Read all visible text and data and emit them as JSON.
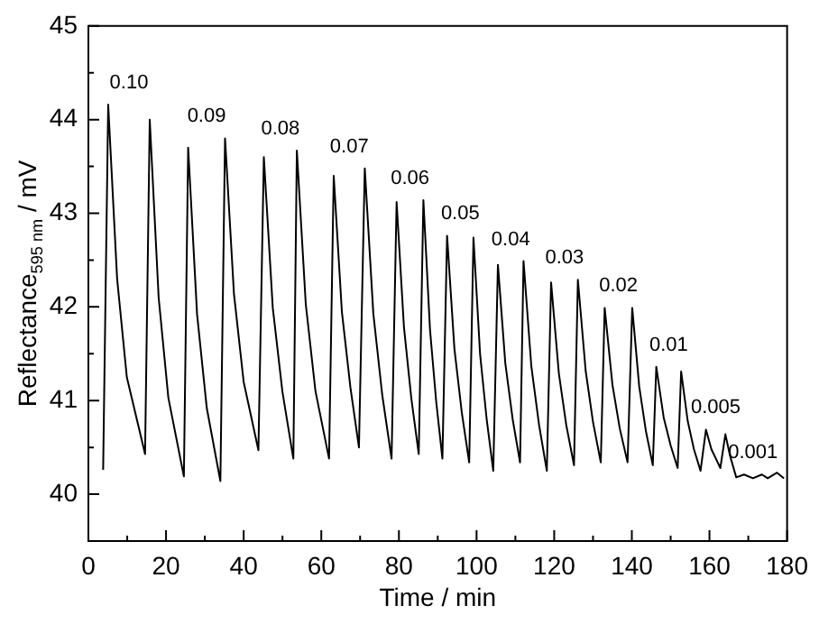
{
  "chart_data": {
    "type": "line",
    "xlabel": "Time / min",
    "ylabel": "Reflectance$_{595 nm}$ / mV",
    "color": "#000000",
    "x": [
      3.8,
      5.1,
      7.4,
      9.9,
      14.6,
      15.8,
      18.1,
      20.6,
      24.6,
      25.7,
      28.0,
      30.5,
      34.0,
      35.2,
      37.5,
      40.0,
      43.8,
      45.2,
      47.5,
      50.0,
      52.8,
      53.7,
      56.0,
      58.5,
      62.0,
      63.2,
      65.3,
      67.5,
      69.7,
      71.2,
      73.4,
      75.7,
      78.1,
      79.4,
      81.3,
      83.2,
      85.1,
      86.3,
      88.0,
      89.6,
      91.2,
      92.4,
      94.3,
      96.2,
      98.1,
      99.2,
      100.9,
      102.6,
      104.3,
      105.5,
      107.4,
      109.3,
      111.2,
      112.1,
      114.1,
      116.1,
      118.1,
      119.2,
      121.2,
      123.1,
      125.1,
      126.1,
      128.1,
      130.0,
      132.0,
      133.0,
      135.0,
      136.9,
      138.9,
      140.1,
      141.9,
      143.6,
      145.4,
      146.3,
      148.2,
      150.0,
      151.8,
      152.7,
      154.4,
      156.0,
      157.7,
      159.1,
      160.5,
      162.8,
      164.1,
      165.3,
      166.9,
      168.9,
      171.2,
      173.5,
      175.0,
      177.4,
      179.2
    ],
    "values": [
      40.26,
      44.16,
      42.3,
      41.25,
      40.43,
      44.0,
      42.1,
      41.03,
      40.19,
      43.7,
      41.92,
      40.92,
      40.14,
      43.8,
      42.14,
      41.2,
      40.47,
      43.6,
      41.99,
      41.09,
      40.38,
      43.67,
      42.03,
      41.1,
      40.38,
      43.4,
      41.95,
      41.14,
      40.5,
      43.48,
      41.93,
      41.06,
      40.38,
      43.12,
      41.78,
      41.02,
      40.43,
      43.14,
      41.76,
      40.99,
      40.38,
      42.76,
      41.55,
      40.87,
      40.34,
      42.74,
      41.5,
      40.8,
      40.25,
      42.45,
      41.4,
      40.8,
      40.34,
      42.49,
      41.37,
      40.74,
      40.25,
      42.26,
      41.29,
      40.74,
      40.31,
      42.29,
      41.32,
      40.77,
      40.34,
      41.99,
      41.17,
      40.7,
      40.34,
      41.99,
      41.15,
      40.68,
      40.31,
      41.36,
      40.82,
      40.52,
      40.28,
      41.31,
      40.78,
      40.48,
      40.25,
      40.69,
      40.48,
      40.28,
      40.64,
      40.41,
      40.18,
      40.21,
      40.17,
      40.21,
      40.17,
      40.23,
      40.17
    ],
    "xlim": [
      0,
      180
    ],
    "xticks": [
      0,
      {
        "value": 10,
        "label": null
      },
      20,
      {
        "value": 30,
        "label": null
      },
      40,
      {
        "value": 50,
        "label": null
      },
      60,
      {
        "value": 70,
        "label": null
      },
      80,
      {
        "value": 90,
        "label": null
      },
      100,
      {
        "value": 110,
        "label": null
      },
      120,
      {
        "value": 130,
        "label": null
      },
      140,
      {
        "value": 150,
        "label": null
      },
      160,
      {
        "value": 170,
        "label": null
      },
      180
    ],
    "ylim": [
      39.5,
      45
    ],
    "yticks": [
      40,
      {
        "value": 40.5,
        "label": null
      },
      41,
      {
        "value": 41.5,
        "label": null
      },
      42,
      {
        "value": 42.5,
        "label": null
      },
      43,
      {
        "value": 43.5,
        "label": null
      },
      44,
      {
        "value": 44.5,
        "label": null
      },
      45
    ],
    "annotations": [
      "0.10",
      "0.09",
      "0.08",
      "0.07",
      "0.06",
      "0.05",
      "0.04",
      "0.03",
      "0.02",
      "0.01",
      "0.005",
      "0.001"
    ]
  }
}
